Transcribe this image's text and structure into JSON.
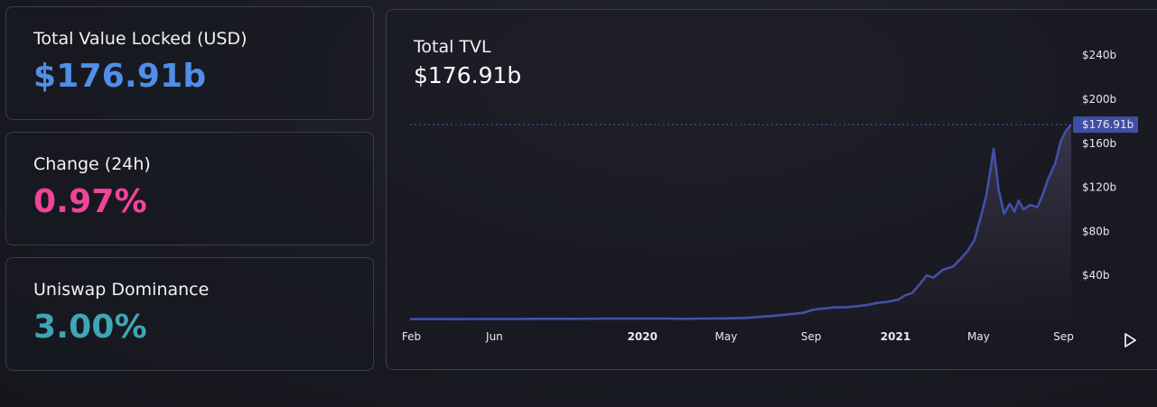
{
  "cards": {
    "tvl": {
      "label": "Total Value Locked (USD)",
      "value": "$176.91b",
      "color": "#4f8fea"
    },
    "change": {
      "label": "Change (24h)",
      "value": "0.97%",
      "color": "#f0449a"
    },
    "dominance": {
      "label": "Uniswap Dominance",
      "value": "3.00%",
      "color": "#3ea6b4"
    }
  },
  "chart": {
    "title": "Total TVL",
    "value": "$176.91b",
    "current_label": "$176.91b",
    "line_color": "#4350a8",
    "badge_color": "#3f4ea6",
    "play_icon": "play-icon"
  },
  "chart_data": {
    "type": "area",
    "title": "Total TVL",
    "xlabel": "",
    "ylabel": "",
    "ylim": [
      0,
      260
    ],
    "y_unit": "billion USD",
    "y_ticks": [
      {
        "value": 40,
        "label": "$40b"
      },
      {
        "value": 80,
        "label": "$80b"
      },
      {
        "value": 120,
        "label": "$120b"
      },
      {
        "value": 160,
        "label": "$160b"
      },
      {
        "value": 200,
        "label": "$200b"
      },
      {
        "value": 240,
        "label": "$240b"
      }
    ],
    "x_ticks": [
      {
        "date": "2019-02-01",
        "label": "Feb",
        "bold": false
      },
      {
        "date": "2019-06-01",
        "label": "Jun",
        "bold": false
      },
      {
        "date": "2020-01-01",
        "label": "2020",
        "bold": true
      },
      {
        "date": "2020-05-01",
        "label": "May",
        "bold": false
      },
      {
        "date": "2020-09-01",
        "label": "Sep",
        "bold": false
      },
      {
        "date": "2021-01-01",
        "label": "2021",
        "bold": true
      },
      {
        "date": "2021-05-01",
        "label": "May",
        "bold": false
      },
      {
        "date": "2021-09-01",
        "label": "Sep",
        "bold": false
      }
    ],
    "x_range": [
      "2019-01-30",
      "2021-09-12"
    ],
    "current_value": 176.91,
    "grid": false,
    "series": [
      {
        "x": [
          "2019-01-30",
          "2019-03-01",
          "2019-04-01",
          "2019-05-01",
          "2019-06-01",
          "2019-07-01",
          "2019-08-01",
          "2019-09-01",
          "2019-10-01",
          "2019-11-01",
          "2019-12-01",
          "2020-01-01",
          "2020-02-01",
          "2020-03-01",
          "2020-04-01",
          "2020-05-01",
          "2020-06-01",
          "2020-06-20",
          "2020-07-05",
          "2020-07-20",
          "2020-08-05",
          "2020-08-20",
          "2020-09-05",
          "2020-09-20",
          "2020-10-05",
          "2020-10-20",
          "2020-11-05",
          "2020-11-20",
          "2020-12-05",
          "2020-12-20",
          "2021-01-05",
          "2021-01-15",
          "2021-01-25",
          "2021-02-05",
          "2021-02-15",
          "2021-02-25",
          "2021-03-10",
          "2021-03-25",
          "2021-04-05",
          "2021-04-15",
          "2021-04-25",
          "2021-05-05",
          "2021-05-12",
          "2021-05-18",
          "2021-05-23",
          "2021-05-30",
          "2021-06-07",
          "2021-06-15",
          "2021-06-22",
          "2021-06-28",
          "2021-07-05",
          "2021-07-15",
          "2021-07-25",
          "2021-08-01",
          "2021-08-10",
          "2021-08-20",
          "2021-08-28",
          "2021-09-05",
          "2021-09-12"
        ],
        "values": [
          0.3,
          0.3,
          0.3,
          0.4,
          0.5,
          0.5,
          0.6,
          0.6,
          0.6,
          0.7,
          0.7,
          0.7,
          0.8,
          0.6,
          0.8,
          1.0,
          1.5,
          2.5,
          3,
          4,
          5,
          6,
          9,
          10,
          11,
          11,
          12,
          13,
          15,
          16,
          18,
          22,
          24,
          32,
          40,
          38,
          45,
          48,
          55,
          62,
          72,
          95,
          112,
          135,
          155,
          118,
          96,
          105,
          98,
          108,
          100,
          104,
          102,
          112,
          128,
          142,
          162,
          172,
          176.91
        ]
      }
    ]
  }
}
